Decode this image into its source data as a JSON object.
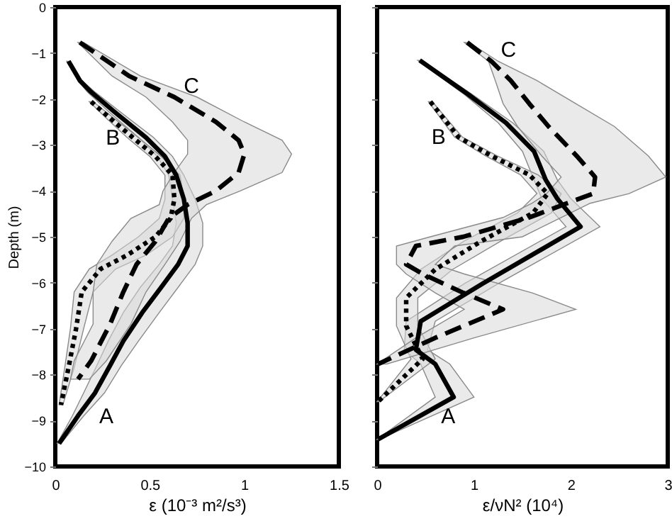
{
  "chart_data": [
    {
      "type": "line",
      "orientation": "horizontal",
      "xlabel": "ε (10⁻³ m²/s³)",
      "ylabel": "Depth (m)",
      "xlim": [
        0,
        1.5
      ],
      "xticks": [
        0,
        0.5,
        1,
        1.5
      ],
      "ylim": [
        -10,
        0
      ],
      "yticks": [
        0,
        -1,
        -2,
        -3,
        -4,
        -5,
        -6,
        -7,
        -8,
        -9,
        -10
      ],
      "series": [
        {
          "color": "#000000",
          "line_style": "solid",
          "x": [
            -1.18,
            -1.6,
            -1.85,
            -2.27,
            -2.84,
            -3.25,
            -3.66,
            -4.18,
            -4.7,
            -5.2,
            -5.6,
            -6.1,
            -6.65,
            -7.27,
            -7.8,
            -8.4,
            -8.9,
            -9.5
          ],
          "values": [
            0.07,
            0.13,
            0.19,
            0.31,
            0.48,
            0.58,
            0.64,
            0.68,
            0.7,
            0.7,
            0.65,
            0.56,
            0.46,
            0.36,
            0.29,
            0.21,
            0.12,
            0.02
          ],
          "lower": [
            0.06,
            0.12,
            0.17,
            0.28,
            0.44,
            0.54,
            0.6,
            0.62,
            0.64,
            0.62,
            0.55,
            0.45,
            0.36,
            0.28,
            0.22,
            0.15,
            0.09,
            0.01
          ],
          "upper": [
            0.08,
            0.14,
            0.21,
            0.34,
            0.52,
            0.62,
            0.68,
            0.74,
            0.78,
            0.78,
            0.74,
            0.65,
            0.55,
            0.44,
            0.35,
            0.26,
            0.15,
            0.03
          ]
        },
        {
          "color": "#000000",
          "line_style": "dotted",
          "x": [
            -2.06,
            -2.42,
            -2.84,
            -3.25,
            -3.66,
            -4.18,
            -4.6,
            -5.0,
            -5.4,
            -5.7,
            -6.2,
            -7.0,
            -7.85,
            -8.66
          ],
          "values": [
            0.19,
            0.29,
            0.41,
            0.53,
            0.62,
            0.63,
            0.61,
            0.53,
            0.38,
            0.24,
            0.14,
            0.11,
            0.07,
            0.03
          ],
          "lower": [
            0.18,
            0.27,
            0.38,
            0.5,
            0.58,
            0.58,
            0.55,
            0.44,
            0.3,
            0.18,
            0.1,
            0.08,
            0.05,
            0.02
          ],
          "upper": [
            0.2,
            0.31,
            0.44,
            0.56,
            0.66,
            0.68,
            0.68,
            0.62,
            0.48,
            0.32,
            0.2,
            0.15,
            0.1,
            0.04
          ]
        },
        {
          "color": "#000000",
          "line_style": "dashed",
          "x": [
            -0.77,
            -1.5,
            -1.96,
            -2.5,
            -2.9,
            -3.2,
            -3.6,
            -4.0,
            -4.3,
            -4.6,
            -5.1,
            -5.6,
            -6.2,
            -6.9,
            -7.7,
            -8.1
          ],
          "values": [
            0.13,
            0.39,
            0.63,
            0.85,
            0.97,
            1.0,
            0.97,
            0.85,
            0.7,
            0.6,
            0.53,
            0.43,
            0.36,
            0.29,
            0.19,
            0.12
          ],
          "lower": [
            0.12,
            0.3,
            0.48,
            0.62,
            0.7,
            0.7,
            0.63,
            0.57,
            0.55,
            0.4,
            0.3,
            0.22,
            0.2,
            0.2,
            0.1,
            0.08
          ],
          "upper": [
            0.15,
            0.45,
            0.75,
            1.0,
            1.2,
            1.25,
            1.2,
            0.98,
            0.8,
            0.72,
            0.66,
            0.58,
            0.48,
            0.4,
            0.27,
            0.18
          ]
        }
      ],
      "annotations": [
        {
          "text": "A",
          "x": 0.12,
          "y": -8.9
        },
        {
          "text": "B",
          "x": 0.41,
          "y": -2.84
        },
        {
          "text": "C",
          "x": 0.63,
          "y": -1.96
        }
      ]
    },
    {
      "type": "line",
      "orientation": "horizontal",
      "xlabel": "ε/νN² (10⁴)",
      "xlim": [
        0,
        3
      ],
      "xticks": [
        0,
        1,
        2,
        3
      ],
      "ylim": [
        -10,
        0
      ],
      "yticks": [
        0,
        -1,
        -2,
        -3,
        -4,
        -5,
        -6,
        -7,
        -8,
        -9,
        -10
      ],
      "tick_labels": "x",
      "series": [
        {
          "color": "#000000",
          "line_style": "solid",
          "x": [
            -1.16,
            -1.9,
            -2.52,
            -3.14,
            -3.76,
            -4.17,
            -4.78,
            -6.02,
            -6.84,
            -7.46,
            -7.77,
            -8.49,
            -9.41
          ],
          "values": [
            0.44,
            0.94,
            1.33,
            1.62,
            1.74,
            1.86,
            2.1,
            1.09,
            0.45,
            0.4,
            0.6,
            0.79,
            0.01
          ],
          "lower": [
            0.42,
            0.9,
            1.25,
            1.5,
            1.62,
            1.7,
            1.95,
            0.9,
            0.3,
            0.28,
            0.45,
            0.6,
            0.0
          ],
          "upper": [
            0.46,
            0.98,
            1.4,
            1.72,
            1.86,
            2.0,
            2.3,
            1.25,
            0.6,
            0.52,
            0.75,
            1.0,
            0.02
          ]
        },
        {
          "color": "#000000",
          "line_style": "dotted",
          "x": [
            -2.06,
            -2.83,
            -3.24,
            -3.65,
            -4.06,
            -4.48,
            -5.09,
            -5.71,
            -6.33,
            -6.94,
            -7.66,
            -8.59
          ],
          "values": [
            0.55,
            0.84,
            1.18,
            1.57,
            1.76,
            1.61,
            1.08,
            0.6,
            0.3,
            0.3,
            0.47,
            0.01
          ],
          "lower": [
            0.53,
            0.8,
            1.12,
            1.48,
            1.65,
            1.45,
            0.9,
            0.45,
            0.2,
            0.2,
            0.35,
            0.0
          ],
          "upper": [
            0.57,
            0.88,
            1.24,
            1.66,
            1.9,
            1.8,
            1.28,
            0.78,
            0.42,
            0.42,
            0.6,
            0.02
          ]
        },
        {
          "color": "#000000",
          "line_style": "dashed",
          "x": [
            -0.77,
            -1.18,
            -1.6,
            -2.1,
            -2.6,
            -3.24,
            -3.7,
            -4.06,
            -4.27,
            -4.58,
            -5.0,
            -5.2,
            -5.6,
            -5.81,
            -6.22,
            -6.58,
            -7.2,
            -7.77
          ],
          "values": [
            0.93,
            1.18,
            1.38,
            1.57,
            1.77,
            2.06,
            2.25,
            2.23,
            1.96,
            1.57,
            0.89,
            0.4,
            0.3,
            0.47,
            0.89,
            1.3,
            0.6,
            0.01
          ],
          "lower": [
            0.9,
            1.15,
            1.22,
            1.3,
            1.45,
            1.7,
            1.9,
            1.75,
            1.6,
            1.3,
            0.55,
            0.2,
            0.2,
            0.3,
            0.6,
            0.9,
            0.4,
            0.0
          ],
          "upper": [
            0.95,
            1.25,
            1.65,
            2.05,
            2.45,
            2.8,
            2.98,
            2.6,
            2.2,
            1.9,
            1.5,
            0.8,
            0.6,
            0.9,
            1.6,
            2.05,
            1.0,
            0.1
          ]
        }
      ],
      "annotations": [
        {
          "text": "A",
          "x": 0.44,
          "y": -8.9
        },
        {
          "text": "B",
          "x": 0.84,
          "y": -2.83
        },
        {
          "text": "C",
          "x": 1.18,
          "y": -1.18
        }
      ]
    }
  ]
}
